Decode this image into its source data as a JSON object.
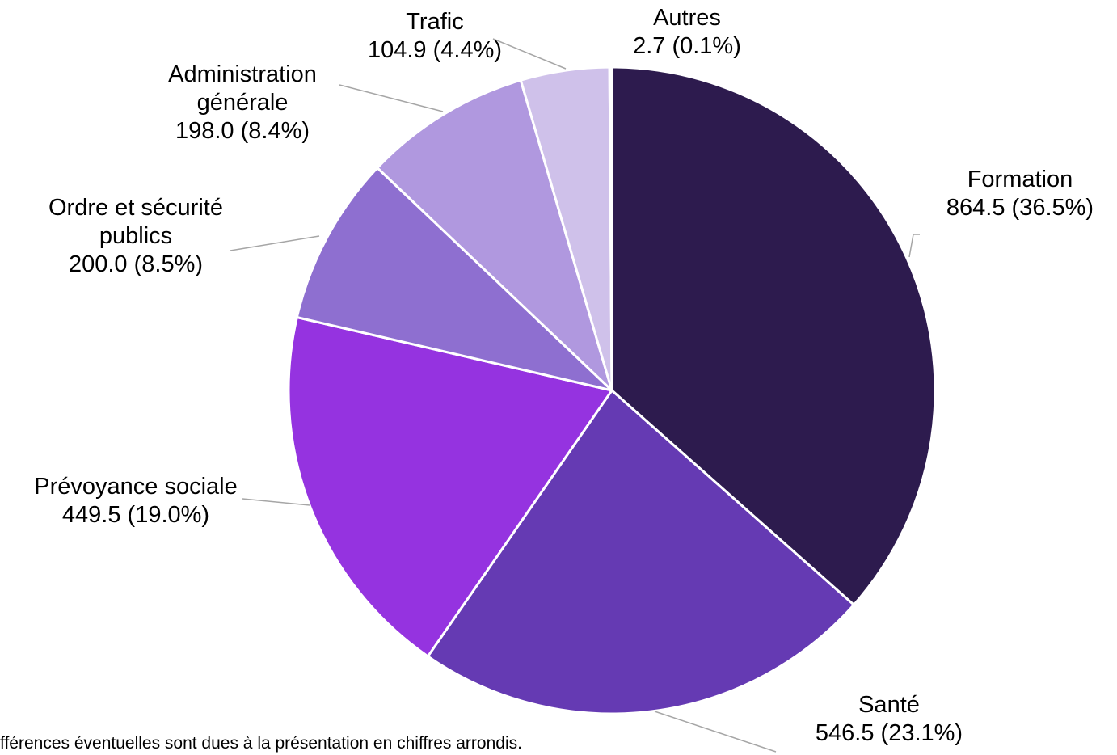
{
  "chart_data": {
    "type": "pie",
    "categories": [
      "Formation",
      "Santé",
      "Prévoyance sociale",
      "Ordre et sécurité publics",
      "Administration générale",
      "Trafic",
      "Autres"
    ],
    "values": [
      864.5,
      546.5,
      449.5,
      200.0,
      198.0,
      104.9,
      2.7
    ],
    "value_labels": [
      "864.5 (36.5%)",
      "546.5 (23.1%)",
      "449.5 (19.0%)",
      "200.0 (8.5%)",
      "198.0 (8.4%)",
      "104.9 (4.4%)",
      "2.7 (0.1%)"
    ],
    "colors": [
      "#2d1b4e",
      "#653ab3",
      "#9533e0",
      "#8e6fd0",
      "#b098df",
      "#cfc1ea",
      "#ece6f7"
    ],
    "note": "fférences éventuelles sont dues à la présentation en chiffres arrondis."
  }
}
